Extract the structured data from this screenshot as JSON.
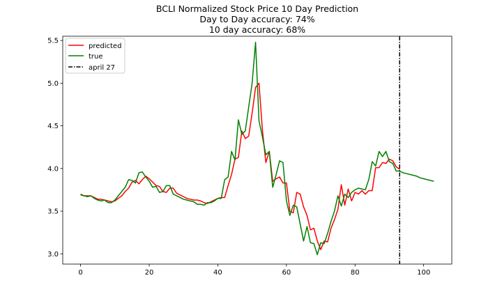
{
  "chart_data": {
    "type": "line",
    "title_lines": [
      "BCLI Normalized Stock Price 10 Day Prediction",
      "Day to Day accuracy: 74%",
      "10 day accuracy: 68%"
    ],
    "xlabel": "",
    "ylabel": "",
    "xlim": [
      -5.2,
      108.2
    ],
    "ylim": [
      2.88,
      5.55
    ],
    "x_ticks": [
      0,
      20,
      40,
      60,
      80,
      100
    ],
    "y_ticks": [
      3.0,
      3.5,
      4.0,
      4.5,
      5.0,
      5.5
    ],
    "grid": false,
    "legend_position": "upper-left",
    "vline": {
      "x": 93,
      "label": "april 27",
      "color": "#000000",
      "style": "dashdot"
    },
    "series": [
      {
        "name": "predicted",
        "color": "#ff0000",
        "x": [
          0,
          1,
          2,
          3,
          4,
          5,
          6,
          7,
          8,
          9,
          10,
          11,
          12,
          13,
          14,
          15,
          16,
          17,
          18,
          19,
          20,
          21,
          22,
          23,
          24,
          25,
          26,
          27,
          28,
          29,
          30,
          31,
          32,
          33,
          34,
          35,
          36,
          37,
          38,
          39,
          40,
          41,
          42,
          43,
          44,
          45,
          46,
          47,
          48,
          49,
          50,
          51,
          52,
          53,
          54,
          55,
          56,
          57,
          58,
          59,
          60,
          61,
          62,
          63,
          64,
          65,
          66,
          67,
          68,
          69,
          70,
          71,
          72,
          73,
          74,
          75,
          76,
          77,
          78,
          79,
          80,
          81,
          82,
          83,
          84,
          85,
          86,
          87,
          88,
          89,
          90,
          91,
          92,
          93
        ],
        "values": [
          3.69,
          3.68,
          3.68,
          3.68,
          3.66,
          3.64,
          3.64,
          3.63,
          3.62,
          3.61,
          3.62,
          3.65,
          3.68,
          3.73,
          3.77,
          3.84,
          3.86,
          3.82,
          3.87,
          3.91,
          3.88,
          3.84,
          3.8,
          3.79,
          3.73,
          3.72,
          3.77,
          3.77,
          3.71,
          3.69,
          3.67,
          3.65,
          3.64,
          3.63,
          3.63,
          3.62,
          3.6,
          3.59,
          3.61,
          3.63,
          3.65,
          3.66,
          3.66,
          3.8,
          3.93,
          4.11,
          4.13,
          4.44,
          4.35,
          4.38,
          4.65,
          4.95,
          5.0,
          4.45,
          4.07,
          4.2,
          3.85,
          3.88,
          3.9,
          3.83,
          3.83,
          3.5,
          3.48,
          3.72,
          3.7,
          3.55,
          3.45,
          3.28,
          3.3,
          3.15,
          3.05,
          3.15,
          3.14,
          3.3,
          3.4,
          3.52,
          3.81,
          3.57,
          3.76,
          3.62,
          3.72,
          3.7,
          3.74,
          3.7,
          3.74,
          3.74,
          4.01,
          4.01,
          4.07,
          4.06,
          4.11,
          4.09,
          4.02,
          3.99
        ]
      },
      {
        "name": "true",
        "color": "#008000",
        "x": [
          0,
          1,
          2,
          3,
          4,
          5,
          6,
          7,
          8,
          9,
          10,
          11,
          12,
          13,
          14,
          15,
          16,
          17,
          18,
          19,
          20,
          21,
          22,
          23,
          24,
          25,
          26,
          27,
          28,
          29,
          30,
          31,
          32,
          33,
          34,
          35,
          36,
          37,
          38,
          39,
          40,
          41,
          42,
          43,
          44,
          45,
          46,
          47,
          48,
          49,
          50,
          51,
          52,
          53,
          54,
          55,
          56,
          57,
          58,
          59,
          60,
          61,
          62,
          63,
          64,
          65,
          66,
          67,
          68,
          69,
          70,
          71,
          72,
          73,
          74,
          75,
          76,
          77,
          78,
          79,
          80,
          81,
          82,
          83,
          84,
          85,
          86,
          87,
          88,
          89,
          90,
          91,
          92,
          93,
          94,
          95,
          96,
          97,
          98,
          99,
          100,
          101,
          102,
          103
        ],
        "values": [
          3.7,
          3.68,
          3.67,
          3.68,
          3.65,
          3.63,
          3.62,
          3.63,
          3.6,
          3.6,
          3.63,
          3.68,
          3.73,
          3.78,
          3.87,
          3.86,
          3.83,
          3.95,
          3.96,
          3.9,
          3.85,
          3.78,
          3.79,
          3.72,
          3.73,
          3.8,
          3.8,
          3.7,
          3.68,
          3.66,
          3.64,
          3.63,
          3.62,
          3.61,
          3.58,
          3.58,
          3.57,
          3.6,
          3.6,
          3.62,
          3.65,
          3.65,
          3.87,
          3.9,
          4.2,
          4.1,
          4.57,
          4.4,
          4.44,
          4.72,
          5.0,
          5.48,
          4.56,
          4.37,
          4.16,
          4.2,
          3.78,
          3.93,
          4.09,
          4.07,
          3.62,
          3.45,
          3.57,
          3.55,
          3.35,
          3.15,
          3.32,
          3.13,
          3.12,
          2.99,
          3.13,
          3.12,
          3.24,
          3.38,
          3.5,
          3.68,
          3.56,
          3.7,
          3.66,
          3.72,
          3.75,
          3.77,
          3.76,
          3.75,
          3.87,
          4.08,
          4.03,
          4.2,
          4.14,
          4.2,
          4.08,
          4.06,
          3.97,
          3.97,
          3.95,
          3.94,
          3.93,
          3.92,
          3.91,
          3.89,
          3.88,
          3.87,
          3.86,
          3.85
        ]
      }
    ]
  }
}
